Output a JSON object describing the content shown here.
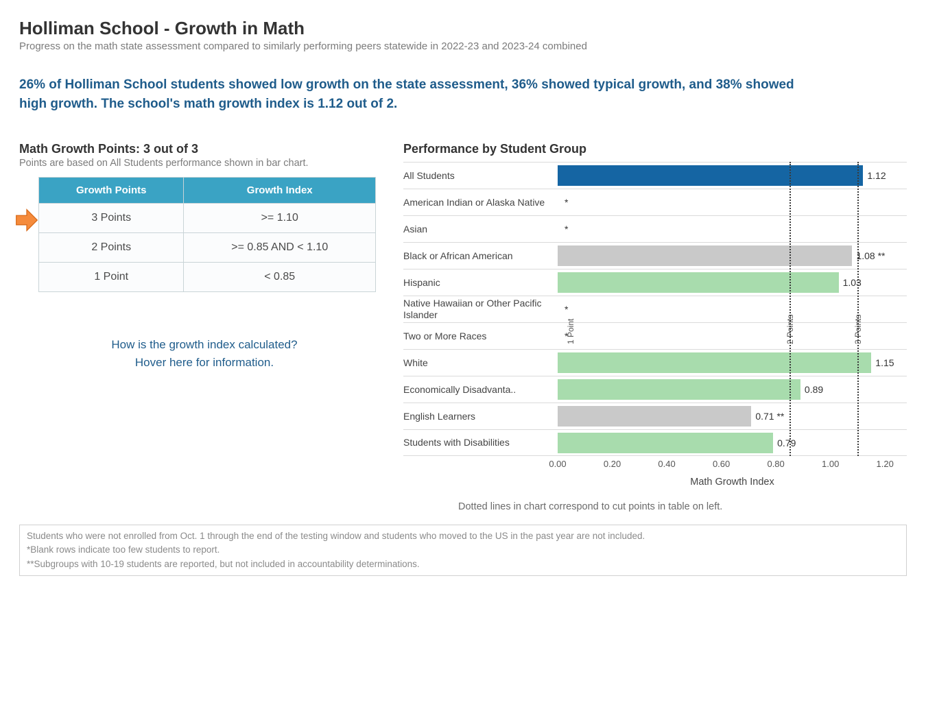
{
  "header": {
    "title": "Holliman School - Growth in Math",
    "subtitle": "Progress on the math state assessment compared to similarly performing peers statewide in 2022-23 and 2023-24 combined"
  },
  "summary_text": "26% of Holliman School students showed low growth on the state assessment, 36% showed typical growth, and 38% showed high growth. The school's math growth index is 1.12 out of 2.",
  "points_panel": {
    "heading": "Math Growth Points: 3 out of 3",
    "sub": "Points are based on All Students performance shown in bar chart.",
    "columns": [
      "Growth Points",
      "Growth Index"
    ],
    "rows": [
      {
        "points": "3 Points",
        "index": ">= 1.10",
        "highlighted": true
      },
      {
        "points": "2 Points",
        "index": ">= 0.85 AND < 1.10",
        "highlighted": false
      },
      {
        "points": "1 Point",
        "index": "< 0.85",
        "highlighted": false
      }
    ],
    "header_bg": "#3aa3c4",
    "header_fg": "#ffffff",
    "cell_bg": "#fbfcfd",
    "border_color": "#c9d4d7",
    "arrow_fill": "#f58b3c",
    "arrow_stroke": "#d96b1a"
  },
  "hover_info": {
    "line1": "How is the growth index calculated?",
    "line2": "Hover here for information."
  },
  "chart": {
    "heading": "Performance by Student Group",
    "x_axis_label": "Math Growth Index",
    "x_min": 0.0,
    "x_max": 1.28,
    "x_ticks": [
      {
        "v": 0.0,
        "label": "0.00"
      },
      {
        "v": 0.2,
        "label": "0.20"
      },
      {
        "v": 0.4,
        "label": "0.40"
      },
      {
        "v": 0.6,
        "label": "0.60"
      },
      {
        "v": 0.8,
        "label": "0.80"
      },
      {
        "v": 1.0,
        "label": "1.00"
      },
      {
        "v": 1.2,
        "label": "1.20"
      }
    ],
    "reference_lines": [
      {
        "v": 0.85,
        "label": "2 Points"
      },
      {
        "v": 1.1,
        "label": "3 Points"
      }
    ],
    "point1_label": {
      "v": 0.0,
      "label": "1 Point"
    },
    "colors": {
      "all_students": "#1565a3",
      "green": "#a8dcad",
      "grey": "#c9c9c9",
      "row_border": "#dadada",
      "ref_line": "#3a3a3a"
    },
    "rows": [
      {
        "label": "All Students",
        "value": 1.12,
        "display": "1.12",
        "color_key": "all_students"
      },
      {
        "label": "American Indian or Alaska Native",
        "value": null,
        "display": "*",
        "color_key": null
      },
      {
        "label": "Asian",
        "value": null,
        "display": "*",
        "color_key": null
      },
      {
        "label": "Black or African American",
        "value": 1.08,
        "display": "1.08 **",
        "color_key": "grey"
      },
      {
        "label": "Hispanic",
        "value": 1.03,
        "display": "1.03",
        "color_key": "green"
      },
      {
        "label": "Native Hawaiian or Other Pacific Islander",
        "value": null,
        "display": "*",
        "color_key": null
      },
      {
        "label": "Two or More Races",
        "value": null,
        "display": "*",
        "color_key": null
      },
      {
        "label": "White",
        "value": 1.15,
        "display": "1.15",
        "color_key": "green"
      },
      {
        "label": "Economically Disadvanta..",
        "value": 0.89,
        "display": "0.89",
        "color_key": "green"
      },
      {
        "label": "English Learners",
        "value": 0.71,
        "display": "0.71 **",
        "color_key": "grey"
      },
      {
        "label": "Students with Disabilities",
        "value": 0.79,
        "display": "0.79",
        "color_key": "green"
      }
    ],
    "note": "Dotted lines in chart correspond to cut points in table on left."
  },
  "footnotes": [
    "Students who were not enrolled from Oct. 1 through the end of the testing window and students who moved to the US in the past year are not included.",
    "*Blank rows indicate too few students to report.",
    "**Subgroups with 10-19 students  are reported, but not included in accountability determinations."
  ]
}
